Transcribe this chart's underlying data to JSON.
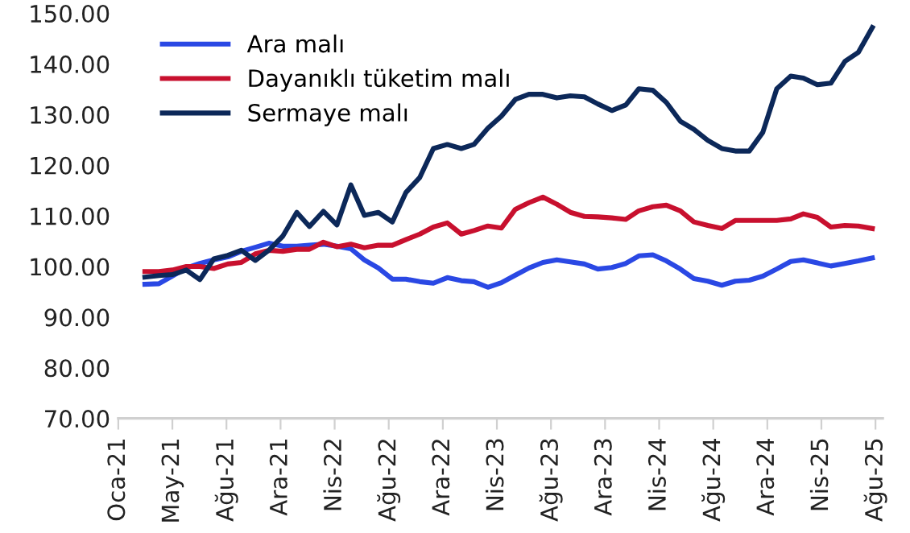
{
  "chart_data": {
    "type": "line",
    "x": [
      "2021-03",
      "2021-04",
      "2021-05",
      "2021-06",
      "2021-07",
      "2021-08",
      "2021-09",
      "2021-10",
      "2021-11",
      "2021-12",
      "2022-01",
      "2022-02",
      "2022-03",
      "2022-04",
      "2022-05",
      "2022-06",
      "2022-07",
      "2022-08",
      "2022-09",
      "2022-10",
      "2022-11",
      "2022-12",
      "2023-01",
      "2023-02",
      "2023-03",
      "2023-04",
      "2023-05",
      "2023-06",
      "2023-07",
      "2023-08",
      "2023-09",
      "2023-10",
      "2023-11",
      "2023-12",
      "2024-01",
      "2024-02",
      "2024-03",
      "2024-04",
      "2024-05",
      "2024-06",
      "2024-07",
      "2024-08",
      "2024-09",
      "2024-10",
      "2024-11",
      "2024-12",
      "2025-01",
      "2025-02",
      "2025-03",
      "2025-04",
      "2025-05",
      "2025-06",
      "2025-07",
      "2025-08"
    ],
    "series": [
      {
        "name": "Ara malı",
        "color": "#2a48e4",
        "values": [
          96.5,
          96.6,
          98.1,
          99.7,
          100.6,
          101.3,
          101.9,
          103.0,
          103.8,
          104.6,
          104.0,
          104.0,
          104.2,
          104.4,
          104.0,
          103.5,
          101.3,
          99.7,
          97.5,
          97.5,
          97.0,
          96.7,
          97.8,
          97.2,
          97.0,
          95.9,
          96.8,
          98.3,
          99.7,
          100.8,
          101.3,
          100.9,
          100.5,
          99.5,
          99.8,
          100.6,
          102.1,
          102.3,
          101.1,
          99.5,
          97.6,
          97.1,
          96.3,
          97.1,
          97.3,
          98.1,
          99.5,
          101.0,
          101.3,
          100.7,
          100.1,
          100.6,
          101.1,
          101.7
        ]
      },
      {
        "name": "Dayanıklı tüketim malı",
        "color": "#c8102e",
        "values": [
          99.0,
          99.0,
          99.3,
          100.0,
          100.0,
          99.6,
          100.5,
          100.8,
          102.5,
          103.2,
          103.0,
          103.4,
          103.4,
          104.8,
          103.9,
          104.4,
          103.7,
          104.2,
          104.2,
          105.3,
          106.4,
          107.8,
          108.6,
          106.4,
          107.1,
          108.0,
          107.6,
          111.3,
          112.6,
          113.7,
          112.3,
          110.7,
          109.9,
          109.8,
          109.6,
          109.3,
          111.0,
          111.8,
          112.1,
          111.0,
          108.8,
          108.1,
          107.5,
          109.1,
          109.1,
          109.1,
          109.1,
          109.4,
          110.4,
          109.7,
          107.8,
          108.1,
          108.0,
          107.5
        ]
      },
      {
        "name": "Sermaye malı",
        "color": "#0c2859",
        "values": [
          97.9,
          98.2,
          98.4,
          99.3,
          97.4,
          101.5,
          102.2,
          103.2,
          101.2,
          103.2,
          106.0,
          110.7,
          107.9,
          110.9,
          108.2,
          116.1,
          110.1,
          110.7,
          108.8,
          114.6,
          117.6,
          123.3,
          124.1,
          123.3,
          124.1,
          127.3,
          129.7,
          133.0,
          134.0,
          134.0,
          133.3,
          133.7,
          133.5,
          132.1,
          130.8,
          131.9,
          135.1,
          134.8,
          132.4,
          128.7,
          127.1,
          124.9,
          123.3,
          122.8,
          122.8,
          126.5,
          135.1,
          137.6,
          137.2,
          135.9,
          136.2,
          140.5,
          142.3,
          147.2
        ]
      }
    ],
    "xlim": [
      "2021-01-01",
      "2025-08-24"
    ],
    "xticks": [
      {
        "value": "2021-01-01",
        "label": "Oca-21"
      },
      {
        "value": "2021-05-01",
        "label": "May-21"
      },
      {
        "value": "2021-08-29",
        "label": "Ağu-21"
      },
      {
        "value": "2021-12-27",
        "label": "Ara-21"
      },
      {
        "value": "2022-04-26",
        "label": "Nis-22"
      },
      {
        "value": "2022-08-24",
        "label": "Ağu-22"
      },
      {
        "value": "2022-12-22",
        "label": "Ara-22"
      },
      {
        "value": "2023-04-21",
        "label": "Nis-23"
      },
      {
        "value": "2023-08-19",
        "label": "Ağu-23"
      },
      {
        "value": "2023-12-17",
        "label": "Ara-23"
      },
      {
        "value": "2024-04-15",
        "label": "Nis-24"
      },
      {
        "value": "2024-08-13",
        "label": "Ağu-24"
      },
      {
        "value": "2024-12-11",
        "label": "Ara-24"
      },
      {
        "value": "2025-04-10",
        "label": "Nis-25"
      },
      {
        "value": "2025-08-08",
        "label": "Ağu-25"
      }
    ],
    "ylim": [
      70,
      150
    ],
    "yticks": [
      {
        "value": 70,
        "label": "70.00"
      },
      {
        "value": 80,
        "label": "80.00"
      },
      {
        "value": 90,
        "label": "90.00"
      },
      {
        "value": 100,
        "label": "100.00"
      },
      {
        "value": 110,
        "label": "110.00"
      },
      {
        "value": 120,
        "label": "120.00"
      },
      {
        "value": 130,
        "label": "130.00"
      },
      {
        "value": 140,
        "label": "140.00"
      },
      {
        "value": 150,
        "label": "150.00"
      }
    ],
    "legend": "top left",
    "grid": false,
    "marker": "none",
    "line_style": "solid"
  }
}
